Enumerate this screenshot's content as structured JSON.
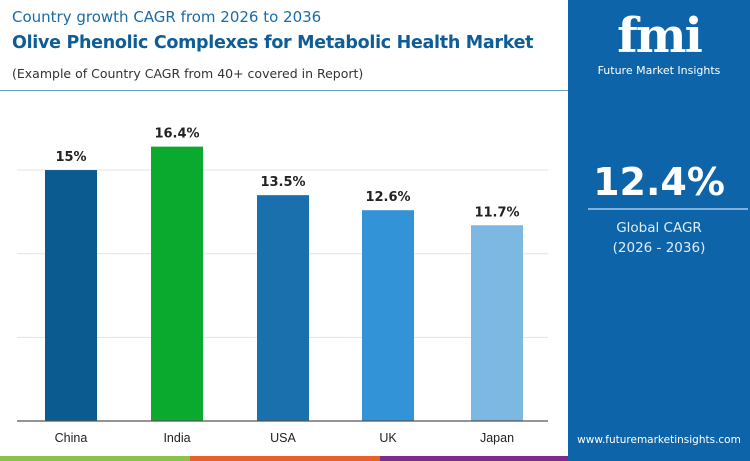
{
  "header": {
    "subtitle": "Country growth CAGR from 2026 to 2036",
    "title": "Olive Phenolic Complexes for Metabolic Health Market",
    "note": "(Example of Country CAGR from 40+ covered in Report)"
  },
  "panel": {
    "logo_text": "fmi",
    "logo_caption": "Future Market Insights",
    "global_cagr": "12.4%",
    "global_label": "Global CAGR",
    "period": "(2026 - 2036)",
    "website": "www.futuremarketinsights.com"
  },
  "chart_data": {
    "type": "bar",
    "categories": [
      "China",
      "India",
      "USA",
      "UK",
      "Japan"
    ],
    "values": [
      15,
      16.4,
      13.5,
      12.6,
      11.7
    ],
    "labels": [
      "15%",
      "16.4%",
      "13.5%",
      "12.6%",
      "11.7%"
    ],
    "colors": [
      "#0b5a90",
      "#0aaa2e",
      "#1a6fad",
      "#3293d6",
      "#7cb8e2"
    ],
    "ylim": [
      0,
      18
    ],
    "grid": true,
    "gridlines": [
      5,
      10,
      15
    ]
  }
}
